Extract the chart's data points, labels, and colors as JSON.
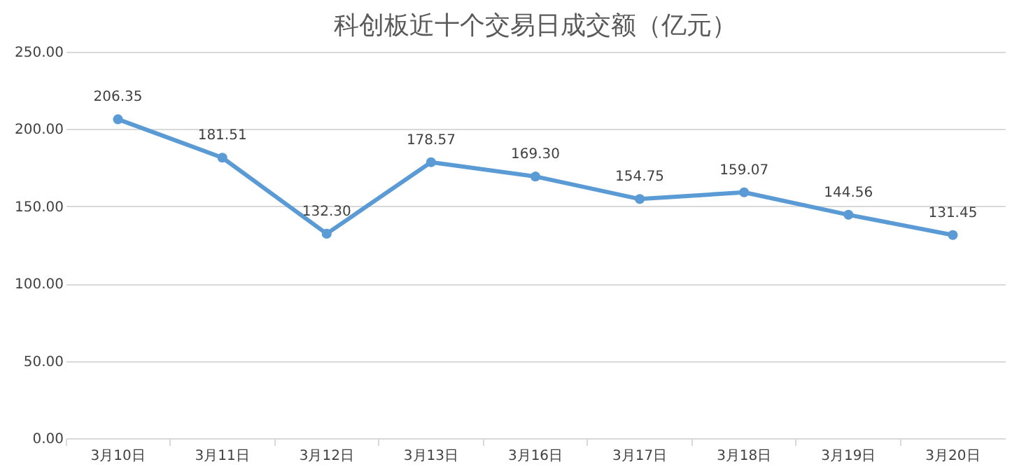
{
  "chart_data": {
    "type": "line",
    "title": "科创板近十个交易日成交额（亿元）",
    "categories": [
      "3月10日",
      "3月11日",
      "3月12日",
      "3月13日",
      "3月16日",
      "3月17日",
      "3月18日",
      "3月19日",
      "3月20日"
    ],
    "series": [
      {
        "color": "#5b9bd5",
        "values": [
          206.35,
          181.51,
          132.3,
          178.57,
          169.3,
          154.75,
          159.07,
          144.56,
          131.45
        ],
        "value_labels": [
          "206.35",
          "181.51",
          "132.30",
          "178.57",
          "169.30",
          "154.75",
          "159.07",
          "144.56",
          "131.45"
        ]
      }
    ],
    "ylim": [
      0,
      250
    ],
    "yticks": [
      {
        "value": 0,
        "label": "0.00"
      },
      {
        "value": 50,
        "label": "50.00"
      },
      {
        "value": 100,
        "label": "100.00"
      },
      {
        "value": 150,
        "label": "150.00"
      },
      {
        "value": 200,
        "label": "200.00"
      },
      {
        "value": 250,
        "label": "250.00"
      }
    ],
    "grid": "y",
    "marker": "circle",
    "line_style": "solid"
  }
}
